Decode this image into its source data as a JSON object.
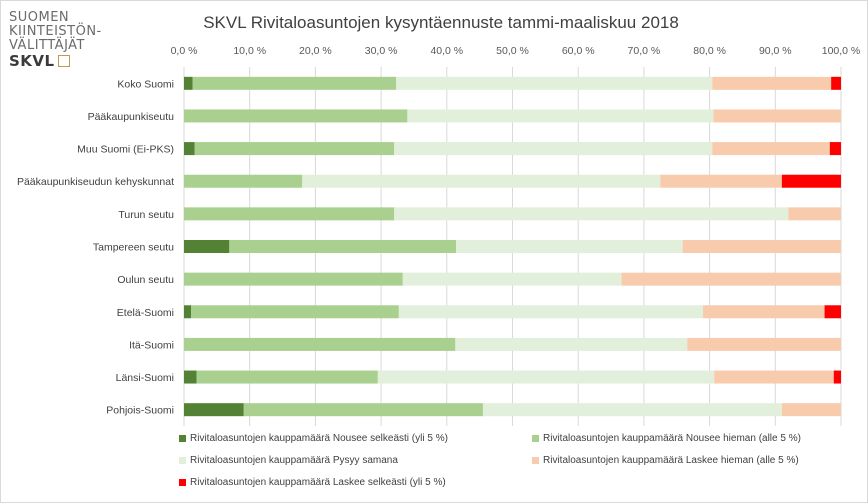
{
  "logo": {
    "line1": "SUOMEN",
    "line2": "KIINTEISTÖN-",
    "line3": "VÄLITTÄJÄT",
    "brand": "SKVL"
  },
  "chart_data": {
    "type": "bar",
    "orientation": "horizontal",
    "stacked": true,
    "title": "SKVL Rivitaloasuntojen kysyntäennuste tammi-maaliskuu 2018",
    "xlim": [
      0,
      100
    ],
    "xticks": [
      "0,0 %",
      "10,0 %",
      "20,0 %",
      "30,0 %",
      "40,0 %",
      "50,0 %",
      "60,0 %",
      "70,0 %",
      "80,0 %",
      "90,0 %",
      "100,0 %"
    ],
    "tick_values": [
      0,
      10,
      20,
      30,
      40,
      50,
      60,
      70,
      80,
      90,
      100
    ],
    "grid": true,
    "legend_position": "bottom",
    "categories": [
      "Koko Suomi",
      "Pääkaupunkiseutu",
      "Muu Suomi (Ei-PKS)",
      "Pääkaupunkiseudun kehyskunnat",
      "Turun seutu",
      "Tampereen seutu",
      "Oulun seutu",
      "Etelä-Suomi",
      "Itä-Suomi",
      "Länsi-Suomi",
      "Pohjois-Suomi"
    ],
    "series": [
      {
        "name": "Rivitaloasuntojen kauppamäärä Nousee selkeästi (yli 5 %)",
        "color": "#548235",
        "values": [
          1.3,
          0,
          1.6,
          0,
          0,
          6.9,
          0,
          1.1,
          0,
          1.9,
          9.1
        ]
      },
      {
        "name": "Rivitaloasuntojen kauppamäärä Nousee hieman (alle 5 %)",
        "color": "#a9d08e",
        "values": [
          31.0,
          34.0,
          30.4,
          18.0,
          32.0,
          34.5,
          33.3,
          31.6,
          41.3,
          27.6,
          36.4
        ]
      },
      {
        "name": "Rivitaloasuntojen kauppamäärä Pysyy samana",
        "color": "#e2efda",
        "values": [
          48.1,
          46.6,
          48.4,
          54.5,
          60.0,
          34.5,
          33.3,
          46.3,
          35.3,
          51.2,
          45.5
        ]
      },
      {
        "name": "Rivitaloasuntojen kauppamäärä Laskee hieman (alle 5 %)",
        "color": "#f8cbad",
        "values": [
          18.1,
          19.4,
          17.9,
          18.5,
          8.0,
          24.1,
          33.4,
          18.5,
          23.4,
          18.2,
          9.0
        ]
      },
      {
        "name": "Rivitaloasuntojen kauppamäärä Laskee selkeästi (yli 5 %)",
        "color": "#ff0000",
        "values": [
          1.5,
          0,
          1.7,
          9.0,
          0,
          0,
          0,
          2.5,
          0,
          1.1,
          0
        ]
      }
    ]
  }
}
